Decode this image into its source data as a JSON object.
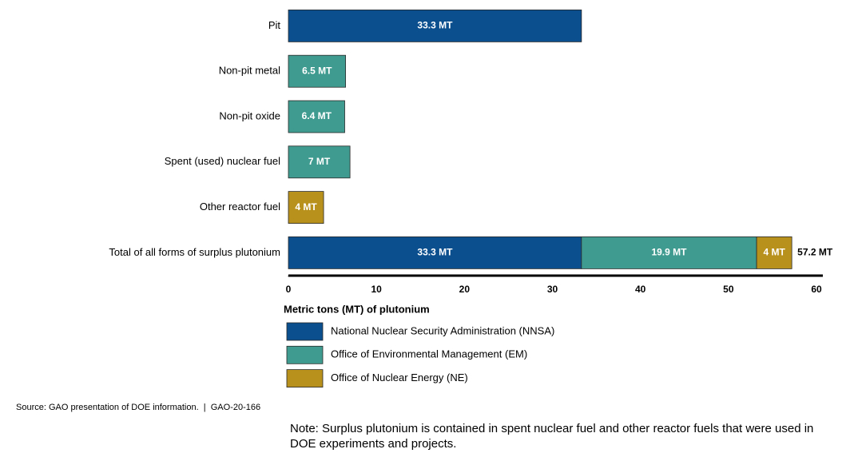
{
  "chart_data": {
    "type": "hbar-stacked",
    "categories": [
      "Pit",
      "Non-pit metal",
      "Non-pit oxide",
      "Spent (used) nuclear fuel",
      "Other reactor fuel",
      "Total of all forms of surplus plutonium"
    ],
    "series": [
      {
        "name": "National Nuclear Security Administration (NNSA)",
        "color": "#0b4f8f",
        "values": [
          33.3,
          null,
          null,
          null,
          null,
          33.3
        ],
        "value_labels": [
          "33.3 MT",
          null,
          null,
          null,
          null,
          "33.3 MT"
        ]
      },
      {
        "name": "Office of Environmental Management (EM)",
        "color": "#3f9b8f",
        "values": [
          null,
          6.5,
          6.4,
          7,
          null,
          19.9
        ],
        "value_labels": [
          null,
          "6.5 MT",
          "6.4 MT",
          "7 MT",
          null,
          "19.9 MT"
        ]
      },
      {
        "name": "Office of Nuclear Energy (NE)",
        "color": "#b8901c",
        "values": [
          null,
          null,
          null,
          null,
          4,
          4
        ],
        "value_labels": [
          null,
          null,
          null,
          null,
          "4 MT",
          "4 MT"
        ]
      }
    ],
    "total_value": 57.2,
    "total_label": "57.2 MT",
    "xlabel": "Metric tons (MT) of plutonium",
    "xlim": [
      0,
      60
    ],
    "xticks": [
      0,
      10,
      20,
      30,
      40,
      50,
      60
    ],
    "source": "Source: GAO presentation of DOE information.  |  GAO-20-166",
    "note": "Note: Surplus plutonium is contained in spent nuclear fuel and other reactor fuels that were used in DOE experiments and projects."
  }
}
